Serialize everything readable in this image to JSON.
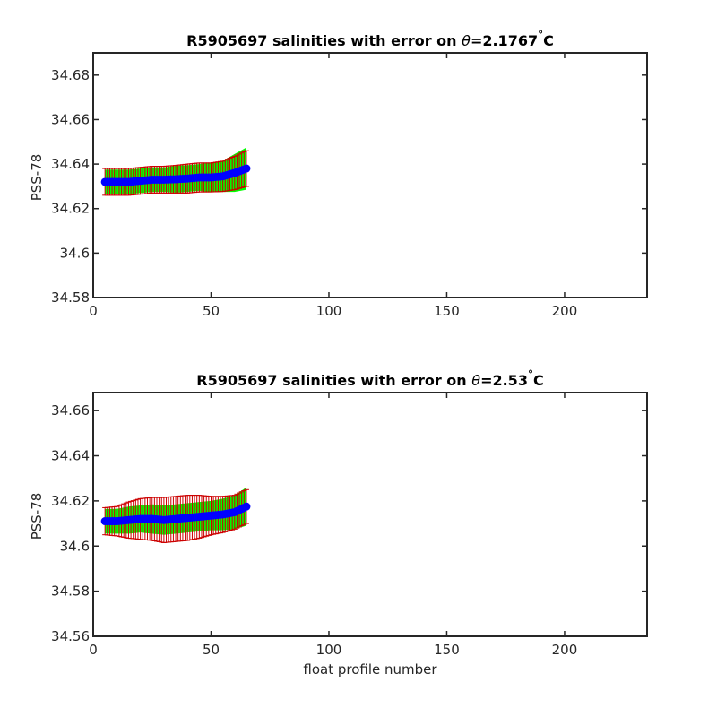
{
  "colors": {
    "mean": "#0000ff",
    "error_bar": "#cc0000",
    "envelope": "#00ff00",
    "axes": "#262626"
  },
  "chart_data": [
    {
      "type": "line",
      "title_prefix": "R5905697 salinities with error on ",
      "title_theta": "θ",
      "title_value": "=2.1767",
      "title_deg": "°",
      "title_unit": "C",
      "xlabel": "",
      "ylabel": "PSS-78",
      "xlim": [
        0,
        235
      ],
      "ylim": [
        34.58,
        34.69
      ],
      "xticks": [
        "0",
        "50",
        "100",
        "150",
        "200"
      ],
      "xtick_values": [
        0,
        50,
        100,
        150,
        200
      ],
      "yticks": [
        "34.58",
        "34.6",
        "34.62",
        "34.64",
        "34.66",
        "34.68"
      ],
      "ytick_values": [
        34.58,
        34.6,
        34.62,
        34.64,
        34.66,
        34.68
      ],
      "x": [
        5,
        10,
        15,
        20,
        25,
        30,
        35,
        40,
        45,
        50,
        55,
        60,
        65
      ],
      "mean": [
        34.632,
        34.632,
        34.632,
        34.6325,
        34.633,
        34.633,
        34.6332,
        34.6335,
        34.634,
        34.634,
        34.6345,
        34.636,
        34.638
      ],
      "error": [
        0.006,
        0.006,
        0.006,
        0.006,
        0.006,
        0.006,
        0.0062,
        0.0065,
        0.0065,
        0.0065,
        0.0068,
        0.0075,
        0.008
      ],
      "envelope_halfwidth": [
        0.0055,
        0.0055,
        0.0055,
        0.0055,
        0.0055,
        0.0055,
        0.006,
        0.006,
        0.006,
        0.0065,
        0.007,
        0.0085,
        0.0095
      ]
    },
    {
      "type": "line",
      "title_prefix": "R5905697 salinities with error on ",
      "title_theta": "θ",
      "title_value": "=2.53",
      "title_deg": "°",
      "title_unit": "C",
      "xlabel": "float profile number",
      "ylabel": "PSS-78",
      "xlim": [
        0,
        235
      ],
      "ylim": [
        34.56,
        34.668
      ],
      "xticks": [
        "0",
        "50",
        "100",
        "150",
        "200"
      ],
      "xtick_values": [
        0,
        50,
        100,
        150,
        200
      ],
      "yticks": [
        "34.56",
        "34.58",
        "34.6",
        "34.62",
        "34.64",
        "34.66"
      ],
      "ytick_values": [
        34.56,
        34.58,
        34.6,
        34.62,
        34.64,
        34.66
      ],
      "x": [
        5,
        10,
        15,
        20,
        25,
        30,
        35,
        40,
        45,
        50,
        55,
        60,
        65
      ],
      "mean": [
        34.611,
        34.611,
        34.6115,
        34.612,
        34.612,
        34.6115,
        34.612,
        34.6125,
        34.613,
        34.6135,
        34.614,
        34.615,
        34.6175
      ],
      "error": [
        0.006,
        0.0065,
        0.008,
        0.009,
        0.0095,
        0.01,
        0.01,
        0.01,
        0.0095,
        0.0085,
        0.008,
        0.0075,
        0.0075
      ],
      "envelope_halfwidth": [
        0.0055,
        0.0055,
        0.006,
        0.006,
        0.0065,
        0.0065,
        0.0065,
        0.0065,
        0.0065,
        0.0065,
        0.007,
        0.0075,
        0.0085
      ]
    }
  ]
}
